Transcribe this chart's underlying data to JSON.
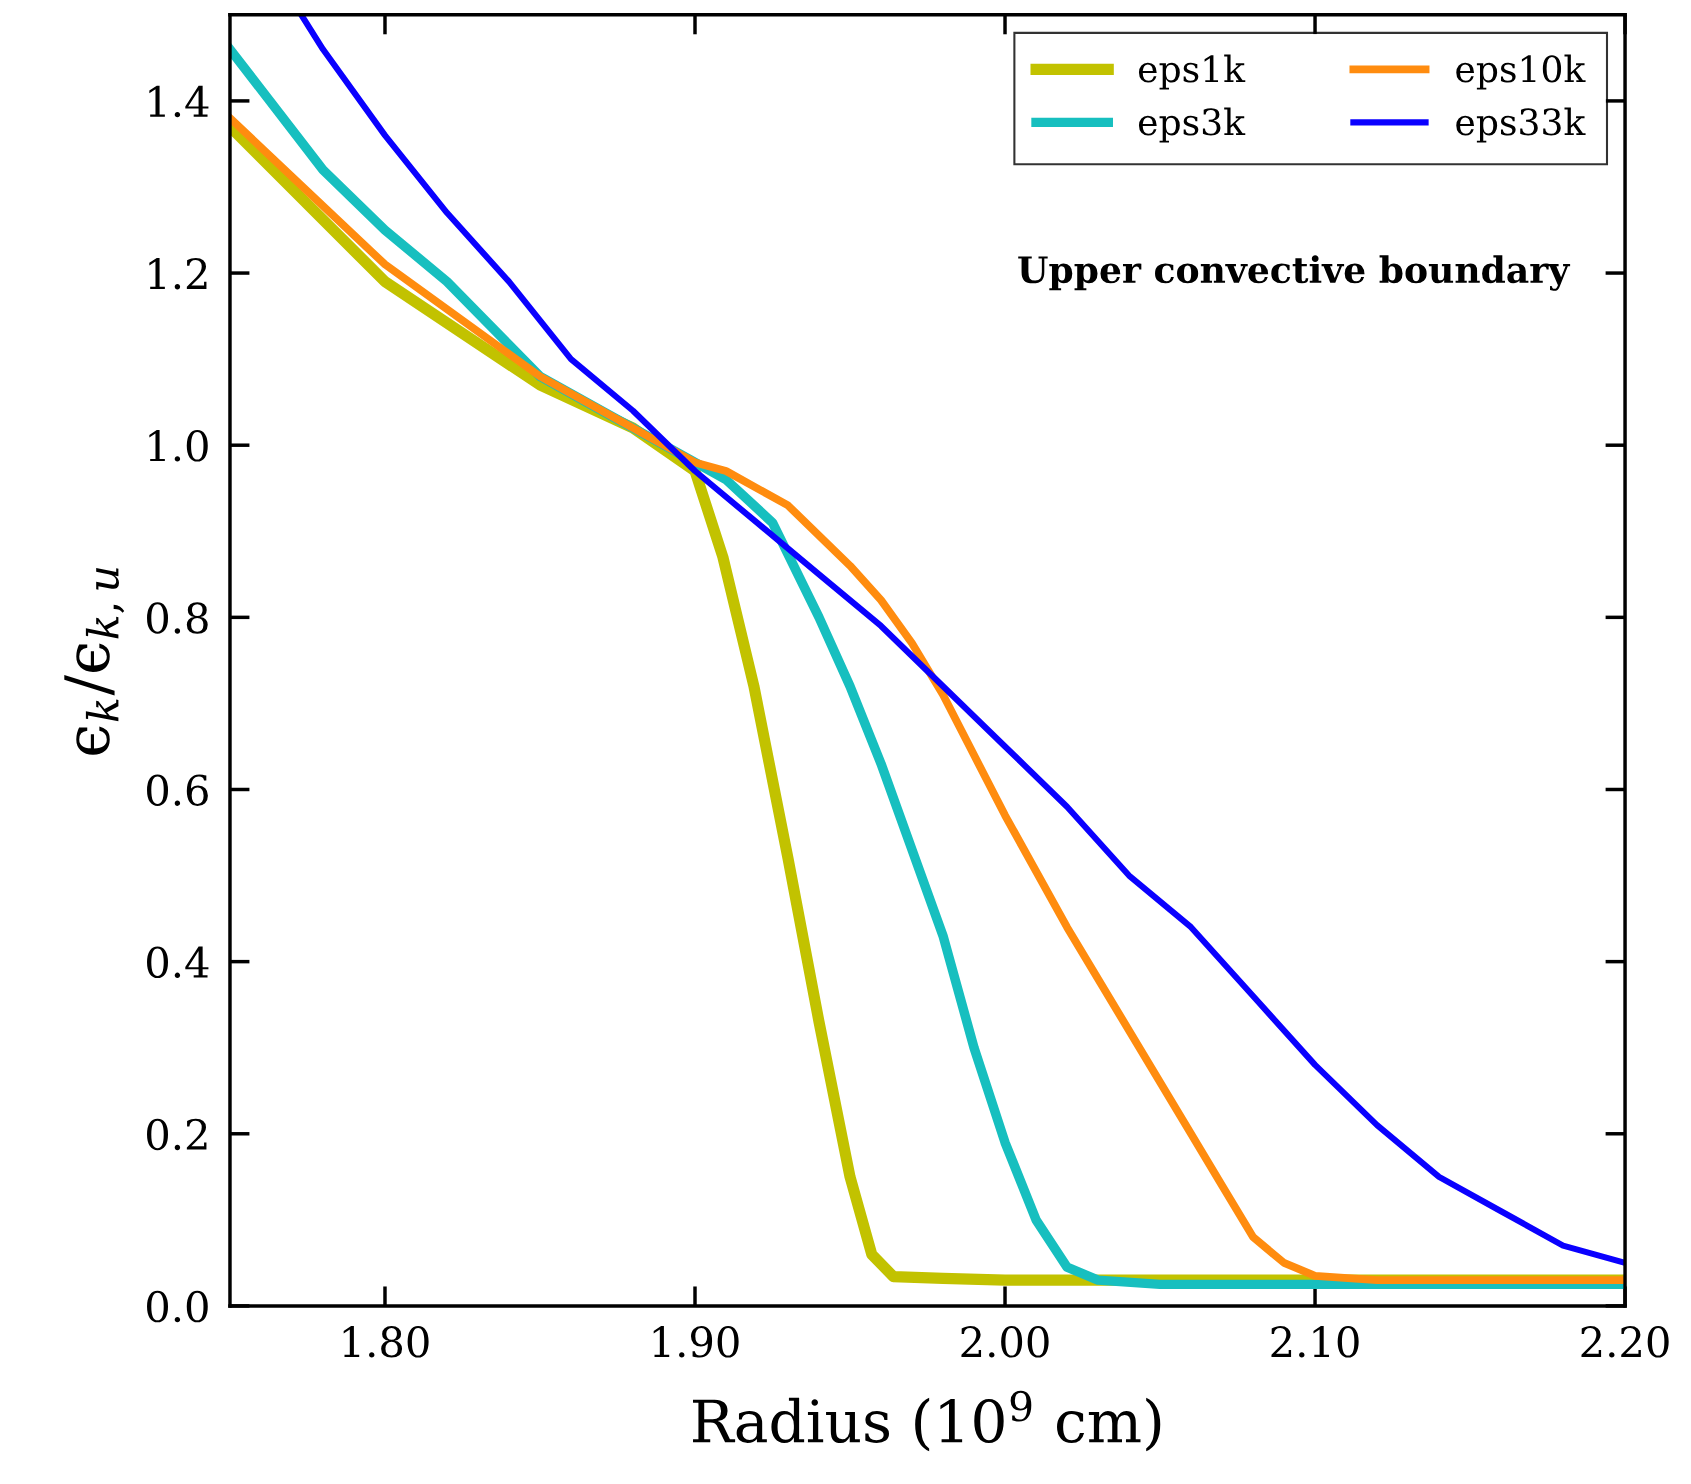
{
  "chart_data": {
    "type": "line",
    "xlabel": "Radius (10$^{9}$ cm)",
    "ylabel": "ϵ$_{k}$/ϵ$_{k,u}$",
    "xlim": [
      1.75,
      2.2
    ],
    "ylim": [
      0,
      1.5
    ],
    "xticks": [
      {
        "value": 1.8,
        "label": "1.80"
      },
      {
        "value": 1.9,
        "label": "1.90"
      },
      {
        "value": 2.0,
        "label": "2.00"
      },
      {
        "value": 2.1,
        "label": "2.10"
      },
      {
        "value": 2.2,
        "label": "2.20"
      }
    ],
    "yticks": [
      {
        "value": 0,
        "label": "0.0"
      },
      {
        "value": 0.2,
        "label": "0.2"
      },
      {
        "value": 0.4,
        "label": "0.4"
      },
      {
        "value": 0.6,
        "label": "0.6"
      },
      {
        "value": 0.8,
        "label": "0.8"
      },
      {
        "value": 1.0,
        "label": "1.0"
      },
      {
        "value": 1.2,
        "label": "1.2"
      },
      {
        "value": 1.4,
        "label": "1.4"
      }
    ],
    "grid": false,
    "legend": "top right",
    "marker": "none",
    "line_style": "solid",
    "annotations": [
      "Upper convective boundary"
    ],
    "series": [
      {
        "name": "eps1k",
        "color": "#c2c200",
        "x": [
          1.75,
          1.8,
          1.85,
          1.88,
          1.9,
          1.909,
          1.919,
          1.93,
          1.94,
          1.95,
          1.957,
          1.964,
          1.98,
          2.0,
          2.05,
          2.1,
          2.15,
          2.2
        ],
        "values": [
          1.37,
          1.19,
          1.07,
          1.02,
          0.97,
          0.87,
          0.72,
          0.52,
          0.33,
          0.15,
          0.06,
          0.034,
          0.032,
          0.03,
          0.03,
          0.03,
          0.03,
          0.03
        ]
      },
      {
        "name": "eps3k",
        "color": "#17bfbf",
        "x": [
          1.75,
          1.78,
          1.8,
          1.82,
          1.85,
          1.87,
          1.89,
          1.91,
          1.925,
          1.94,
          1.95,
          1.96,
          1.97,
          1.98,
          1.99,
          2.0,
          2.01,
          2.02,
          2.03,
          2.05,
          2.1,
          2.2
        ],
        "values": [
          1.46,
          1.32,
          1.25,
          1.19,
          1.08,
          1.04,
          1.0,
          0.96,
          0.91,
          0.8,
          0.72,
          0.63,
          0.53,
          0.43,
          0.3,
          0.19,
          0.1,
          0.045,
          0.03,
          0.025,
          0.025,
          0.025
        ]
      },
      {
        "name": "eps10k",
        "color": "#ff8c0f",
        "x": [
          1.75,
          1.8,
          1.85,
          1.88,
          1.9,
          1.91,
          1.93,
          1.95,
          1.96,
          1.97,
          1.98,
          1.99,
          2.0,
          2.02,
          2.04,
          2.06,
          2.07,
          2.08,
          2.09,
          2.1,
          2.12,
          2.2
        ],
        "values": [
          1.38,
          1.21,
          1.08,
          1.02,
          0.98,
          0.97,
          0.93,
          0.86,
          0.82,
          0.77,
          0.71,
          0.64,
          0.57,
          0.44,
          0.32,
          0.2,
          0.14,
          0.08,
          0.05,
          0.035,
          0.03,
          0.03
        ]
      },
      {
        "name": "eps33k",
        "color": "#0a00ff",
        "x": [
          1.773,
          1.78,
          1.8,
          1.82,
          1.84,
          1.86,
          1.88,
          1.9,
          1.92,
          1.94,
          1.96,
          1.98,
          2.0,
          2.02,
          2.04,
          2.06,
          2.08,
          2.1,
          2.12,
          2.14,
          2.16,
          2.18,
          2.2
        ],
        "values": [
          1.5,
          1.46,
          1.36,
          1.27,
          1.19,
          1.1,
          1.04,
          0.97,
          0.91,
          0.85,
          0.79,
          0.72,
          0.65,
          0.58,
          0.5,
          0.44,
          0.36,
          0.28,
          0.21,
          0.15,
          0.11,
          0.07,
          0.05
        ]
      }
    ]
  }
}
